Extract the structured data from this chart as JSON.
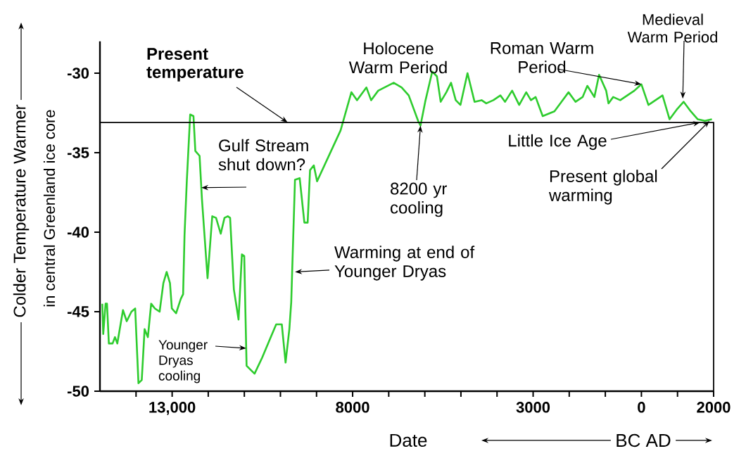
{
  "chart_data": {
    "type": "line",
    "xlabel": "Date",
    "ylabel": "Colder Temperature Warmer",
    "x": [
      -14935,
      -14909,
      -14844,
      -14805,
      -14753,
      -14649,
      -14584,
      -14519,
      -14414,
      -14362,
      -14258,
      -14128,
      -14024,
      -13933,
      -13842,
      -13763,
      -13672,
      -13581,
      -13477,
      -13347,
      -13243,
      -13152,
      -13060,
      -13008,
      -12891,
      -12761,
      -12696,
      -12657,
      -12592,
      -12500,
      -12409,
      -12357,
      -12240,
      -12175,
      -12019,
      -11889,
      -11784,
      -11654,
      -11550,
      -11459,
      -11394,
      -11290,
      -11160,
      -11068,
      -11003,
      -10938,
      -10717,
      -10508,
      -10287,
      -10118,
      -9962,
      -9858,
      -9753,
      -9701,
      -9597,
      -9467,
      -9337,
      -9246,
      -9180,
      -9076,
      -8985,
      -8334,
      -8035,
      -7878,
      -7618,
      -7488,
      -7292,
      -6863,
      -6641,
      -6446,
      -6186,
      -6120,
      -5990,
      -5795,
      -5665,
      -5561,
      -5404,
      -5274,
      -5144,
      -5014,
      -4818,
      -4623,
      -4428,
      -4298,
      -4102,
      -3907,
      -3777,
      -3582,
      -3386,
      -3191,
      -3061,
      -2931,
      -2735,
      -2410,
      -2215,
      -2019,
      -1824,
      -1629,
      -1498,
      -1303,
      -1173,
      -977,
      -912,
      -782,
      -587,
      -392,
      -196,
      0,
      194,
      390,
      585,
      780,
      975,
      1170,
      1366,
      1561,
      1757,
      1952
    ],
    "series": [
      {
        "color": "#2ecc2e",
        "values": [
          -44.5,
          -46.4,
          -44.5,
          -44.5,
          -47.0,
          -47.0,
          -46.6,
          -47.0,
          -45.6,
          -44.9,
          -45.6,
          -45.0,
          -44.8,
          -49.5,
          -49.3,
          -46.1,
          -46.6,
          -44.5,
          -44.8,
          -45.0,
          -43.2,
          -42.5,
          -43.2,
          -44.8,
          -45.1,
          -44.2,
          -43.9,
          -40.2,
          -36.7,
          -32.6,
          -32.7,
          -34.9,
          -35.2,
          -37.9,
          -42.9,
          -39.0,
          -39.1,
          -40.1,
          -39.1,
          -39.0,
          -39.1,
          -43.6,
          -45.5,
          -41.4,
          -41.5,
          -48.4,
          -48.9,
          -47.9,
          -46.7,
          -45.8,
          -45.8,
          -48.2,
          -46.1,
          -44.4,
          -36.7,
          -36.6,
          -39.4,
          -39.4,
          -36.1,
          -35.8,
          -36.8,
          -33.6,
          -31.2,
          -31.7,
          -30.9,
          -31.7,
          -31.1,
          -30.6,
          -30.9,
          -31.4,
          -33.0,
          -33.3,
          -31.8,
          -29.9,
          -30.2,
          -31.8,
          -31.2,
          -30.6,
          -31.7,
          -32.0,
          -30.0,
          -31.8,
          -31.7,
          -31.9,
          -31.7,
          -31.4,
          -31.8,
          -31.1,
          -32.0,
          -31.2,
          -31.7,
          -31.5,
          -32.7,
          -32.4,
          -31.8,
          -31.2,
          -31.8,
          -31.5,
          -30.8,
          -31.5,
          -30.1,
          -31.1,
          -31.9,
          -31.5,
          -31.7,
          -31.4,
          -31.1,
          -30.7,
          -32.0,
          -31.7,
          -31.4,
          -32.9,
          -32.3,
          -31.8,
          -32.4,
          -32.9,
          -33.0,
          -32.9
        ]
      }
    ],
    "xlim": [
      -15000,
      2000
    ],
    "xticks": [
      {
        "value": -14000,
        "label": null
      },
      {
        "value": -13000,
        "label": "13,000"
      },
      {
        "value": -12000,
        "label": null
      },
      {
        "value": -11000,
        "label": null
      },
      {
        "value": -10000,
        "label": null
      },
      {
        "value": -9000,
        "label": null
      },
      {
        "value": -8000,
        "label": "8000"
      },
      {
        "value": -7000,
        "label": null
      },
      {
        "value": -6000,
        "label": null
      },
      {
        "value": -5000,
        "label": null
      },
      {
        "value": -4000,
        "label": null
      },
      {
        "value": -3000,
        "label": "3000"
      },
      {
        "value": -2000,
        "label": null
      },
      {
        "value": -1000,
        "label": null
      },
      {
        "value": 0,
        "label": "0"
      },
      {
        "value": 1000,
        "label": null
      },
      {
        "value": 2000,
        "label": "2000"
      }
    ],
    "ylim": [
      -50,
      -28
    ],
    "yticks": [
      -50,
      -45,
      -40,
      -35,
      -30
    ],
    "ref_lines": [
      {
        "axis": "y",
        "value": -33.1,
        "label": "Present temperature",
        "color": "#000000"
      }
    ],
    "annotations": [
      {
        "text": "Holocene Warm Period",
        "x": -6863,
        "y": -30.6
      },
      {
        "text": "Roman Warm Period",
        "x": 0,
        "y": -30.7
      },
      {
        "text": "Medieval Warm Period",
        "x": 1145,
        "y": -31.6
      },
      {
        "text": "Gulf Stream shut down?",
        "x": -12192,
        "y": -37.2
      },
      {
        "text": "Younger Dryas cooling",
        "x": -10948,
        "y": -47.3
      },
      {
        "text": "Warming at end of Younger Dryas",
        "x": -9597,
        "y": -42.5
      },
      {
        "text": "8200 yr cooling",
        "x": -6120,
        "y": -33.3
      },
      {
        "text": "Little Ice Age",
        "x": 1626,
        "y": -33.1
      },
      {
        "text": "Present global warming",
        "x": 1886,
        "y": -33.0
      },
      "in central Greenland ice core",
      "BC AD"
    ],
    "grid": false,
    "marker": "none",
    "line_style": "solid"
  }
}
